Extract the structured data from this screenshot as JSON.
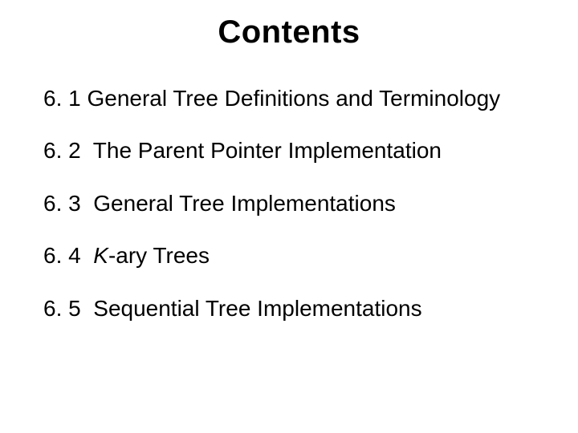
{
  "title": "Contents",
  "items": [
    {
      "num": "6. 1",
      "text": "General Tree Definitions and Terminology"
    },
    {
      "num": "6. 2",
      "text": "The Parent Pointer Implementation"
    },
    {
      "num": "6. 3",
      "text": "General Tree Implementations"
    },
    {
      "num": "6. 4",
      "prefix": "K",
      "text": "-ary Trees"
    },
    {
      "num": "6. 5",
      "text": "Sequential Tree Implementations"
    }
  ],
  "style": {
    "background": "#ffffff",
    "text_color": "#000000",
    "title_fontsize": 40,
    "body_fontsize": 28,
    "font_family": "Arial"
  }
}
